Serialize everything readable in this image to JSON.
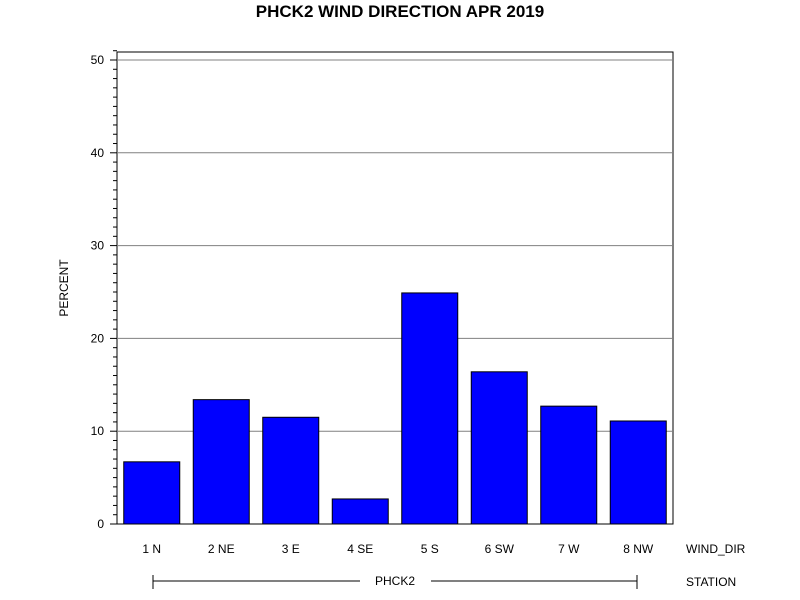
{
  "chart_data": {
    "type": "bar",
    "title": "PHCK2 WIND DIRECTION APR 2019",
    "ylabel": "PERCENT",
    "xlabel": "WIND_DIR",
    "group_axis_label": "STATION",
    "group": "PHCK2",
    "categories": [
      "1 N",
      "2 NE",
      "3 E",
      "4 SE",
      "5 S",
      "6 SW",
      "7 W",
      "8 NW"
    ],
    "values": [
      6.7,
      13.4,
      11.5,
      2.7,
      24.9,
      16.4,
      12.7,
      11.1
    ],
    "ylim": [
      0,
      51
    ],
    "yticks": [
      0,
      10,
      20,
      30,
      40,
      50
    ],
    "grid": true,
    "bar_color": "#0000ff",
    "legend": "none"
  }
}
